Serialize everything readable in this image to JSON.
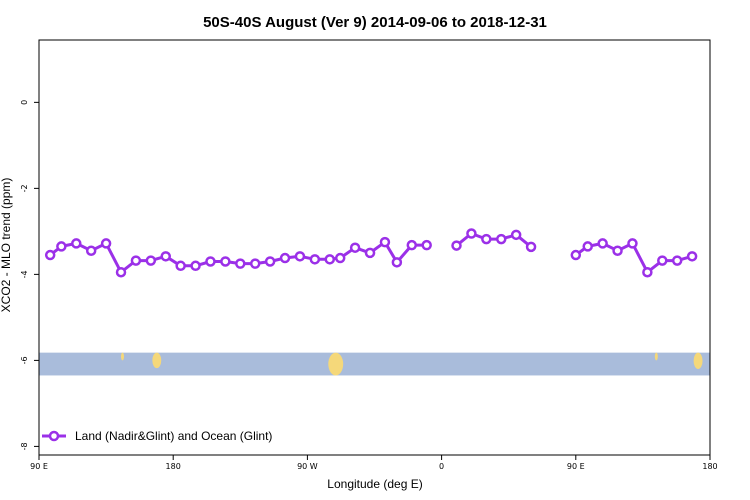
{
  "chart_data": {
    "type": "line",
    "title": "50S-40S August (Ver 9)   2014-09-06 to 2018-12-31",
    "xlabel": "Longitude (deg E)",
    "ylabel": "XCO2 - MLO trend (ppm)",
    "xlim": [
      90,
      540
    ],
    "ylim": [
      -8.2,
      1.45
    ],
    "x_ticks": [
      {
        "value": 90,
        "label": "90 E"
      },
      {
        "value": 180,
        "label": "180"
      },
      {
        "value": 270,
        "label": "90 W"
      },
      {
        "value": 360,
        "label": "0"
      },
      {
        "value": 450,
        "label": "90 E"
      },
      {
        "value": 540,
        "label": "180"
      }
    ],
    "y_ticks": [
      {
        "value": 0,
        "label": "0"
      },
      {
        "value": -2,
        "label": "-2"
      },
      {
        "value": -4,
        "label": "-4"
      },
      {
        "value": -6,
        "label": "-6"
      },
      {
        "value": -8,
        "label": "-8"
      }
    ],
    "band": {
      "y_top": -5.82,
      "y_bottom": -6.35,
      "ocean_color": "#a9bcdb",
      "land_color": "#f5d87a",
      "land_patches": [
        {
          "x": [
            145,
            147
          ],
          "y": [
            -5.82,
            -6.0
          ]
        },
        {
          "x": [
            166,
            172
          ],
          "y": [
            -5.82,
            -6.18
          ]
        },
        {
          "x": [
            284,
            294
          ],
          "y": [
            -5.82,
            -6.35
          ]
        },
        {
          "x": [
            529,
            535
          ],
          "y": [
            -5.82,
            -6.2
          ]
        },
        {
          "x": [
            503,
            505
          ],
          "y": [
            -5.82,
            -6.0
          ]
        }
      ]
    },
    "series": [
      {
        "name": "Land (Nadir&Glint) and Ocean (Glint)",
        "color": "#9b30e8",
        "segments": [
          [
            [
              97.5,
              -3.55
            ],
            [
              105,
              -3.35
            ],
            [
              115,
              -3.28
            ],
            [
              125,
              -3.45
            ],
            [
              135,
              -3.28
            ],
            [
              145,
              -3.95
            ],
            [
              155,
              -3.68
            ],
            [
              165,
              -3.68
            ],
            [
              175,
              -3.58
            ],
            [
              185,
              -3.8
            ],
            [
              195,
              -3.8
            ],
            [
              205,
              -3.7
            ],
            [
              215,
              -3.7
            ],
            [
              225,
              -3.75
            ],
            [
              235,
              -3.75
            ],
            [
              245,
              -3.7
            ],
            [
              255,
              -3.62
            ],
            [
              265,
              -3.58
            ],
            [
              275,
              -3.65
            ],
            [
              285,
              -3.65
            ],
            [
              292,
              -3.62
            ],
            [
              302,
              -3.38
            ],
            [
              312,
              -3.5
            ],
            [
              322,
              -3.25
            ],
            [
              330,
              -3.72
            ],
            [
              340,
              -3.32
            ],
            [
              350,
              -3.32
            ]
          ],
          [
            [
              370,
              -3.33
            ],
            [
              380,
              -3.05
            ],
            [
              390,
              -3.18
            ],
            [
              400,
              -3.18
            ],
            [
              410,
              -3.08
            ],
            [
              420,
              -3.36
            ]
          ],
          [
            [
              450,
              -3.55
            ],
            [
              458,
              -3.35
            ],
            [
              468,
              -3.28
            ],
            [
              478,
              -3.45
            ],
            [
              488,
              -3.28
            ],
            [
              498,
              -3.95
            ],
            [
              508,
              -3.68
            ],
            [
              518,
              -3.68
            ],
            [
              528,
              -3.58
            ]
          ]
        ]
      }
    ],
    "legend": {
      "position": "bottom-left",
      "label": "Land (Nadir&Glint) and Ocean (Glint)"
    }
  }
}
